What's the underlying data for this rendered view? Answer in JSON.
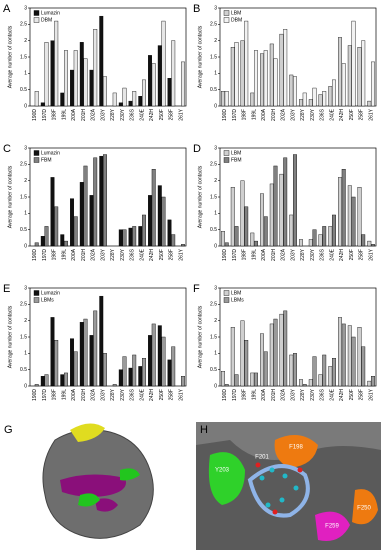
{
  "chart_data": [
    {
      "type": "bar",
      "panel": "A",
      "ylabel": "Average number of contacts",
      "categories": [
        "190D",
        "197D",
        "198F",
        "199L",
        "200A",
        "201H",
        "202A",
        "203Y",
        "228Y",
        "230Y",
        "236S",
        "240E",
        "242H",
        "250F",
        "258F",
        "261Y"
      ],
      "series": [
        {
          "name": "Lumazin",
          "color": "#111111",
          "values": [
            0,
            0.1,
            2.0,
            0.4,
            1.1,
            1.95,
            1.1,
            2.75,
            0,
            0.1,
            0.15,
            0.3,
            1.55,
            1.85,
            0.85,
            0
          ]
        },
        {
          "name": "DBM",
          "color": "#e6e6e6",
          "values": [
            0.45,
            1.95,
            2.6,
            1.7,
            1.7,
            1.45,
            2.35,
            0.9,
            0.4,
            0.55,
            0.45,
            0.8,
            1.3,
            2.6,
            2.0,
            1.35
          ]
        }
      ],
      "ylim": [
        0,
        3
      ],
      "yticks": [
        0,
        0.5,
        1,
        1.5,
        2,
        2.5,
        3
      ]
    },
    {
      "type": "bar",
      "panel": "B",
      "ylabel": "Average number of contacts",
      "categories": [
        "190D",
        "197D",
        "198F",
        "199L",
        "200A",
        "201H",
        "202A",
        "203Y",
        "228Y",
        "230Y",
        "236S",
        "240E",
        "242H",
        "250F",
        "258F",
        "261Y"
      ],
      "series": [
        {
          "name": "LBM",
          "color": "#cfcfcf",
          "values": [
            0.45,
            1.8,
            2.0,
            0.4,
            1.6,
            1.9,
            2.2,
            0.95,
            0.2,
            0.2,
            0.35,
            0.6,
            2.1,
            1.85,
            1.8,
            0.15
          ]
        },
        {
          "name": "DBM",
          "color": "#f2f2f2",
          "values": [
            0.45,
            1.95,
            2.6,
            1.7,
            1.7,
            1.45,
            2.35,
            0.9,
            0.4,
            0.55,
            0.45,
            0.8,
            1.3,
            2.6,
            2.0,
            1.35
          ]
        }
      ],
      "ylim": [
        0,
        3
      ],
      "yticks": [
        0,
        0.5,
        1,
        1.5,
        2,
        2.5,
        3
      ]
    },
    {
      "type": "bar",
      "panel": "C",
      "ylabel": "Average number of contacts",
      "categories": [
        "190D",
        "197D",
        "198F",
        "199L",
        "200A",
        "201H",
        "202A",
        "203Y",
        "228Y",
        "230Y",
        "236S",
        "240E",
        "242H",
        "250F",
        "258F",
        "261Y"
      ],
      "series": [
        {
          "name": "Lumazin",
          "color": "#111111",
          "values": [
            0,
            0.3,
            2.1,
            0.35,
            1.45,
            1.95,
            1.55,
            2.75,
            0,
            0.5,
            0.55,
            0.6,
            1.55,
            1.85,
            0.8,
            0
          ]
        },
        {
          "name": "FBM",
          "color": "#808080",
          "values": [
            0.1,
            0.6,
            1.2,
            0.15,
            0.9,
            2.45,
            2.7,
            2.8,
            0,
            0.5,
            0.6,
            0.95,
            2.35,
            1.5,
            0.35,
            0.05
          ]
        }
      ],
      "ylim": [
        0,
        3
      ],
      "yticks": [
        0,
        0.5,
        1,
        1.5,
        2,
        2.5,
        3
      ]
    },
    {
      "type": "bar",
      "panel": "D",
      "ylabel": "Average number of contacts",
      "categories": [
        "190D",
        "197D",
        "198F",
        "199L",
        "200A",
        "201H",
        "202A",
        "203Y",
        "228Y",
        "230Y",
        "236S",
        "240E",
        "242H",
        "250F",
        "258F",
        "261Y"
      ],
      "series": [
        {
          "name": "LBM",
          "color": "#cfcfcf",
          "values": [
            0.45,
            1.8,
            2.0,
            0.4,
            1.6,
            1.9,
            2.2,
            0.95,
            0.2,
            0.2,
            0.35,
            0.6,
            2.1,
            1.85,
            1.8,
            0.15
          ]
        },
        {
          "name": "FBM",
          "color": "#808080",
          "values": [
            0.1,
            0.6,
            1.2,
            0.15,
            0.9,
            2.45,
            2.7,
            2.8,
            0,
            0.5,
            0.6,
            0.95,
            2.35,
            1.5,
            0.35,
            0.05
          ]
        }
      ],
      "ylim": [
        0,
        3
      ],
      "yticks": [
        0,
        0.5,
        1,
        1.5,
        2,
        2.5,
        3
      ]
    },
    {
      "type": "bar",
      "panel": "E",
      "ylabel": "Average number of contacts",
      "categories": [
        "190D",
        "197D",
        "198F",
        "199L",
        "200A",
        "201H",
        "202A",
        "203Y",
        "228Y",
        "230Y",
        "236S",
        "240E",
        "242H",
        "250F",
        "258F",
        "261Y"
      ],
      "series": [
        {
          "name": "Lumazin",
          "color": "#111111",
          "values": [
            0,
            0.3,
            2.1,
            0.35,
            1.45,
            1.95,
            1.55,
            2.75,
            0,
            0.5,
            0.55,
            0.6,
            1.55,
            1.85,
            0.8,
            0
          ]
        },
        {
          "name": "LBMs",
          "color": "#9a9a9a",
          "values": [
            0.05,
            0.35,
            1.4,
            0.4,
            1.05,
            2.05,
            2.3,
            1.0,
            0.05,
            0.9,
            0.95,
            0.85,
            1.9,
            1.5,
            1.2,
            0.3
          ]
        }
      ],
      "ylim": [
        0,
        3
      ],
      "yticks": [
        0,
        0.5,
        1,
        1.5,
        2,
        2.5,
        3
      ]
    },
    {
      "type": "bar",
      "panel": "F",
      "ylabel": "Average number of contacts",
      "categories": [
        "190D",
        "197D",
        "198F",
        "199L",
        "200A",
        "201H",
        "202A",
        "203Y",
        "228Y",
        "230Y",
        "236S",
        "240E",
        "242H",
        "250F",
        "258F",
        "261Y"
      ],
      "series": [
        {
          "name": "LBM",
          "color": "#cfcfcf",
          "values": [
            0.45,
            1.8,
            2.0,
            0.4,
            1.6,
            1.9,
            2.2,
            0.95,
            0.2,
            0.2,
            0.35,
            0.6,
            2.1,
            1.85,
            1.8,
            0.15
          ]
        },
        {
          "name": "LBMs",
          "color": "#9a9a9a",
          "values": [
            0.05,
            0.35,
            1.4,
            0.4,
            1.05,
            2.05,
            2.3,
            1.0,
            0.05,
            0.9,
            0.95,
            0.85,
            1.9,
            1.5,
            1.2,
            0.3
          ]
        }
      ],
      "ylim": [
        0,
        3
      ],
      "yticks": [
        0,
        0.5,
        1,
        1.5,
        2,
        2.5,
        3
      ]
    }
  ],
  "figures": [
    {
      "panel": "G"
    },
    {
      "panel": "H",
      "labels": [
        "Y203",
        "F201",
        "F198",
        "F250",
        "F259"
      ]
    }
  ]
}
